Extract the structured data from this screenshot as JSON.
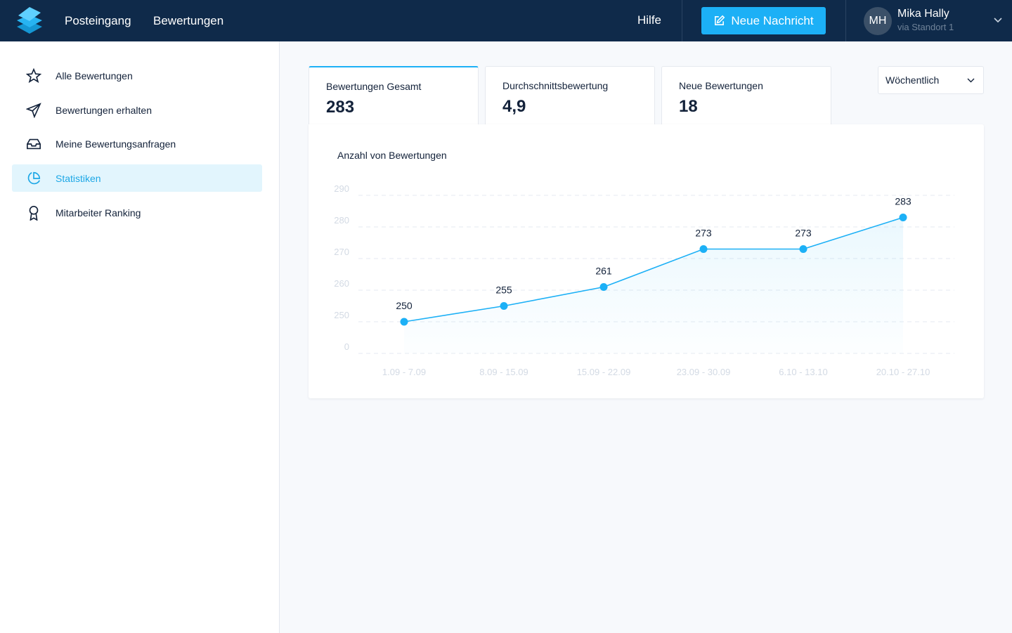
{
  "header": {
    "nav": [
      "Posteingang",
      "Bewertungen"
    ],
    "help": "Hilfe",
    "button": "Neue Nachricht",
    "user": {
      "initials": "MH",
      "name": "Mika Hally",
      "location": "via Standort 1"
    }
  },
  "sidebar": {
    "items": [
      "Alle Bewertungen",
      "Bewertungen erhalten",
      "Meine Bewertungsanfragen",
      "Statistiken",
      "Mitarbeiter Ranking"
    ]
  },
  "cards": [
    {
      "label": "Bewertungen Gesamt",
      "value": 283
    },
    {
      "label": "Durchschnittsbewertung",
      "value": "4,9"
    },
    {
      "label": "Neue Bewertungen",
      "value": 18
    }
  ],
  "period": "Wöchentlich",
  "chart_data": {
    "type": "line",
    "title": "Anzahl von Bewertungen",
    "categories": [
      "1.09 - 7.09",
      "8.09 - 15.09",
      "15.09 - 22.09",
      "23.09 - 30.09",
      "6.10 - 13.10",
      "20.10 - 27.10"
    ],
    "series": [
      {
        "name": "Bewertungen",
        "color": "#1cb0f6",
        "values": [
          250,
          255,
          261,
          273,
          273,
          283
        ]
      }
    ],
    "ylim": [
      240,
      290
    ],
    "yticks": [
      {
        "value": 240,
        "label": "0"
      },
      250,
      260,
      270,
      280,
      290
    ],
    "grid": true
  }
}
